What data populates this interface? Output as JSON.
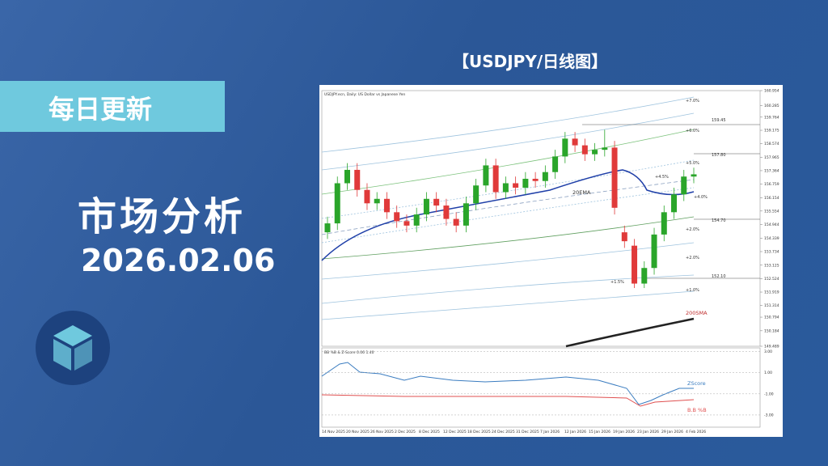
{
  "banner": {
    "tag": "每日更新",
    "heading": "市场分析",
    "date": "2026.02.06"
  },
  "chart_title": "【USDJPY/日线图】",
  "chart_data": {
    "type": "candlestick",
    "header": "USDJPY.ecn, Daily: US Dollar vs Japanese Yen",
    "open": [
      154.6,
      155.0,
      156.8,
      157.4,
      156.5,
      155.9,
      156.1,
      155.5,
      155.1,
      154.9,
      155.4,
      156.1,
      155.8,
      155.2,
      154.9,
      155.9,
      156.7,
      157.6,
      156.4,
      156.8,
      156.6,
      157.0,
      156.9,
      157.3,
      158.0,
      158.8,
      158.5,
      158.1,
      158.3,
      158.4,
      154.6,
      154.0,
      152.3,
      153.0,
      154.5,
      155.5,
      156.3,
      157.1
    ],
    "close": [
      155.0,
      156.8,
      157.4,
      156.5,
      155.9,
      156.1,
      155.5,
      155.1,
      154.9,
      155.4,
      156.1,
      155.8,
      155.2,
      154.9,
      155.9,
      156.7,
      157.6,
      156.4,
      156.8,
      156.6,
      157.0,
      156.9,
      157.3,
      158.0,
      158.8,
      158.5,
      158.1,
      158.3,
      158.4,
      155.7,
      154.2,
      152.3,
      153.0,
      154.5,
      155.5,
      156.3,
      157.1,
      157.2
    ],
    "high": [
      155.3,
      157.1,
      157.7,
      157.7,
      156.8,
      156.4,
      156.4,
      155.8,
      155.4,
      155.7,
      156.4,
      156.4,
      156.1,
      155.5,
      156.2,
      157.0,
      157.9,
      157.9,
      157.1,
      157.1,
      157.3,
      157.3,
      157.6,
      158.3,
      159.1,
      159.1,
      158.8,
      158.6,
      159.2,
      158.7,
      154.9,
      154.3,
      153.3,
      154.8,
      155.8,
      156.6,
      157.4,
      157.5
    ],
    "low": [
      154.3,
      154.7,
      156.5,
      156.2,
      155.6,
      155.6,
      155.2,
      154.8,
      154.6,
      154.6,
      155.1,
      155.5,
      154.9,
      154.6,
      154.6,
      155.6,
      156.4,
      156.1,
      156.1,
      156.3,
      156.3,
      156.6,
      156.6,
      157.0,
      157.7,
      158.2,
      157.8,
      157.8,
      158.0,
      155.4,
      153.9,
      152.1,
      152.1,
      152.7,
      154.2,
      155.2,
      156.0,
      156.8
    ],
    "ylim": [
      149.489,
      160.954
    ],
    "yticks": [
      160.954,
      160.285,
      159.764,
      159.175,
      158.574,
      157.965,
      157.364,
      156.759,
      156.154,
      155.554,
      154.944,
      154.339,
      153.734,
      153.125,
      152.524,
      151.919,
      151.314,
      150.794,
      150.184,
      149.489
    ],
    "x_labels": [
      "14 Nov 2025",
      "20 Nov 2025",
      "26 Nov 2025",
      "2 Dec 2025",
      "8 Dec 2025",
      "12 Dec 2025",
      "18 Dec 2025",
      "24 Dec 2025",
      "31 Dec 2025",
      "7 Jan 2026",
      "12 Jan 2026",
      "15 Jan 2026",
      "19 Jan 2026",
      "23 Jan 2026",
      "29 Jan 2026",
      "4 Feb 2026"
    ],
    "annotations": [
      "+7.0%",
      "159.45",
      "+6.0%",
      "157.80",
      "+5.0%",
      "+4.5%",
      "20EMA",
      "+4.0%",
      "154.70",
      "+2.0%",
      "+2.0%",
      "152.10",
      "+1.5%",
      "+1.0%",
      "200SMA"
    ],
    "indicator": {
      "header": "BB %B & Z-Score 0.06 1.40",
      "ylim": [
        -4,
        3.2
      ],
      "yticks": [
        {
          "value": 3,
          "label": "3.00"
        },
        {
          "value": 1,
          "label": "1.00"
        },
        {
          "value": -1,
          "label": "-1.00"
        },
        {
          "value": -3,
          "label": "-3.00"
        }
      ],
      "labels": [
        "ZScore",
        "B.B %B"
      ]
    }
  }
}
